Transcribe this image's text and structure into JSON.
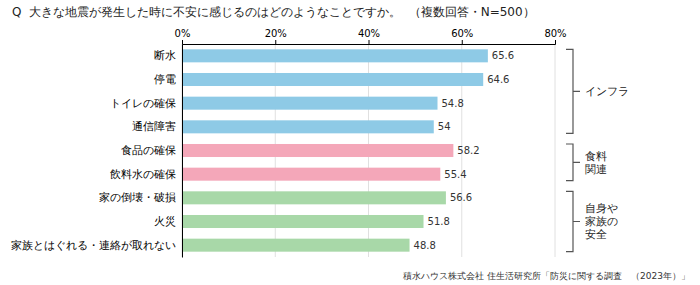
{
  "chart_data": {
    "type": "bar",
    "orientation": "horizontal",
    "title": "Q  大きな地震が発生した時に不安に感じるのはどのようなことですか。  （複数回答・N=500）",
    "categories": [
      "断水",
      "停電",
      "トイレの確保",
      "通信障害",
      "食品の確保",
      "飲料水の確保",
      "家の倒壊・破損",
      "火災",
      "家族とはぐれる・連絡が取れない"
    ],
    "values": [
      65.6,
      64.6,
      54.8,
      54.0,
      58.2,
      55.4,
      56.6,
      51.8,
      48.8
    ],
    "colors": [
      "#8ECAE6",
      "#8ECAE6",
      "#8ECAE6",
      "#8ECAE6",
      "#F4A7B9",
      "#F4A7B9",
      "#A8D8A8",
      "#A8D8A8",
      "#A8D8A8"
    ],
    "xlim": [
      0,
      80
    ],
    "xticks": [
      {
        "value": 0,
        "label": "0%"
      },
      {
        "value": 20,
        "label": "20%"
      },
      {
        "value": 40,
        "label": "40%"
      },
      {
        "value": 60,
        "label": "60%"
      },
      {
        "value": 80,
        "label": "80%"
      }
    ],
    "grid": true,
    "data_labels": true,
    "groups": [
      {
        "label": "インフラ",
        "categories": [
          "断水",
          "停電",
          "トイレの確保",
          "通信障害"
        ]
      },
      {
        "label": "食料\n関連",
        "categories": [
          "食品の確保",
          "飲料水の確保"
        ]
      },
      {
        "label": "自身や\n家族の\n安全",
        "categories": [
          "家の倒壊・破損",
          "火災",
          "家族とはぐれる・連絡が取れない"
        ]
      }
    ],
    "source": "積水ハウス株式会社 住生活研究所「防災に関する調査　（2023年）」"
  }
}
